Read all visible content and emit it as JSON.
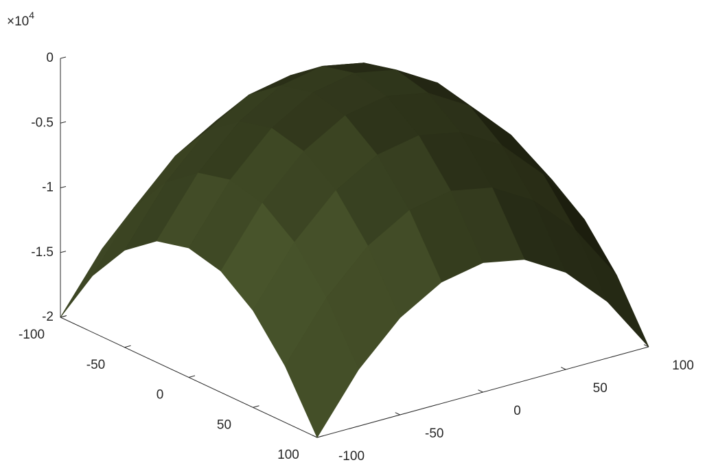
{
  "chart_data": {
    "type": "surface",
    "z_exponent_base": "×10",
    "z_exponent": 4,
    "x": [
      -100,
      -75,
      -50,
      -25,
      0,
      25,
      50,
      75,
      100
    ],
    "y": [
      -100,
      -75,
      -50,
      -25,
      0,
      25,
      50,
      75,
      100
    ],
    "z": [
      [
        -2,
        -1.5625,
        -1.25,
        -1.0625,
        -1,
        -1.0625,
        -1.25,
        -1.5625,
        -2
      ],
      [
        -1.5625,
        -1.125,
        -0.8125,
        -0.625,
        -0.5625,
        -0.625,
        -0.8125,
        -1.125,
        -1.5625
      ],
      [
        -1.25,
        -0.8125,
        -0.5,
        -0.3125,
        -0.25,
        -0.3125,
        -0.5,
        -0.8125,
        -1.25
      ],
      [
        -1.0625,
        -0.625,
        -0.3125,
        -0.125,
        -0.0625,
        -0.125,
        -0.3125,
        -0.625,
        -1.0625
      ],
      [
        -1,
        -0.5625,
        -0.25,
        -0.0625,
        0,
        -0.0625,
        -0.25,
        -0.5625,
        -1
      ],
      [
        -1.0625,
        -0.625,
        -0.3125,
        -0.125,
        -0.0625,
        -0.125,
        -0.3125,
        -0.625,
        -1.0625
      ],
      [
        -1.25,
        -0.8125,
        -0.5,
        -0.3125,
        -0.25,
        -0.3125,
        -0.5,
        -0.8125,
        -1.25
      ],
      [
        -1.5625,
        -1.125,
        -0.8125,
        -0.625,
        -0.5625,
        -0.625,
        -0.8125,
        -1.125,
        -1.5625
      ],
      [
        -2,
        -1.5625,
        -1.25,
        -1.0625,
        -1,
        -1.0625,
        -1.25,
        -1.5625,
        -2
      ]
    ],
    "xlim": [
      -100,
      100
    ],
    "ylim": [
      -100,
      100
    ],
    "zlim": [
      -2,
      0
    ],
    "xticks": [
      -100,
      -50,
      0,
      50,
      100
    ],
    "yticks": [
      -100,
      -50,
      0,
      50,
      100
    ],
    "zticks": [
      -2,
      -1.5,
      -1,
      -0.5,
      0
    ],
    "color_light": "#4d5a2e",
    "color_dark": "#141409"
  }
}
